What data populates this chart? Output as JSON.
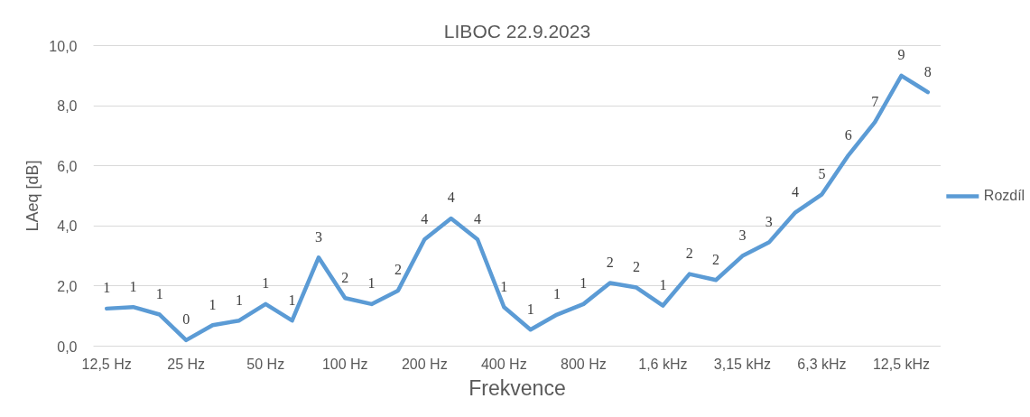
{
  "chart_data": {
    "type": "line",
    "title": "LIBOC 22.9.2023",
    "xlabel": "Frekvence",
    "ylabel": "LAeq [dB]",
    "categories": [
      "12,5 Hz",
      null,
      null,
      "25 Hz",
      null,
      null,
      "50 Hz",
      null,
      null,
      "100 Hz",
      null,
      null,
      "200 Hz",
      null,
      null,
      "400 Hz",
      null,
      null,
      "800 Hz",
      null,
      null,
      "1,6 kHz",
      null,
      null,
      "3,15 kHz",
      null,
      null,
      "6,3 kHz",
      null,
      null,
      "12,5 kHz",
      null
    ],
    "series": [
      {
        "name": "Rozdíl",
        "color": "#5b9bd5",
        "values": [
          1.25,
          1.3,
          1.05,
          0.2,
          0.7,
          0.85,
          1.4,
          0.85,
          2.95,
          1.6,
          1.4,
          1.85,
          3.55,
          4.25,
          3.55,
          1.3,
          0.55,
          1.05,
          1.4,
          2.1,
          1.95,
          1.35,
          2.4,
          2.2,
          3.0,
          3.45,
          4.45,
          5.05,
          6.35,
          7.45,
          9.0,
          8.45
        ],
        "value_labels": [
          "1",
          "1",
          "1",
          "0",
          "1",
          "1",
          "1",
          "1",
          "3",
          "2",
          "1",
          "2",
          "4",
          "4",
          "4",
          "1",
          "1",
          "1",
          "1",
          "2",
          "2",
          "1",
          "2",
          "2",
          "3",
          "3",
          "4",
          "5",
          "6",
          "7",
          "9",
          "8"
        ]
      }
    ],
    "ylim": [
      0,
      10
    ],
    "yticks": [
      {
        "value": 0,
        "label": "0,0"
      },
      {
        "value": 2,
        "label": "2,0"
      },
      {
        "value": 4,
        "label": "4,0"
      },
      {
        "value": 6,
        "label": "6,0"
      },
      {
        "value": 8,
        "label": "8,0"
      },
      {
        "value": 10,
        "label": "10,0"
      }
    ],
    "grid": "y",
    "legend": "right",
    "marker": "none",
    "line_style": "solid"
  }
}
